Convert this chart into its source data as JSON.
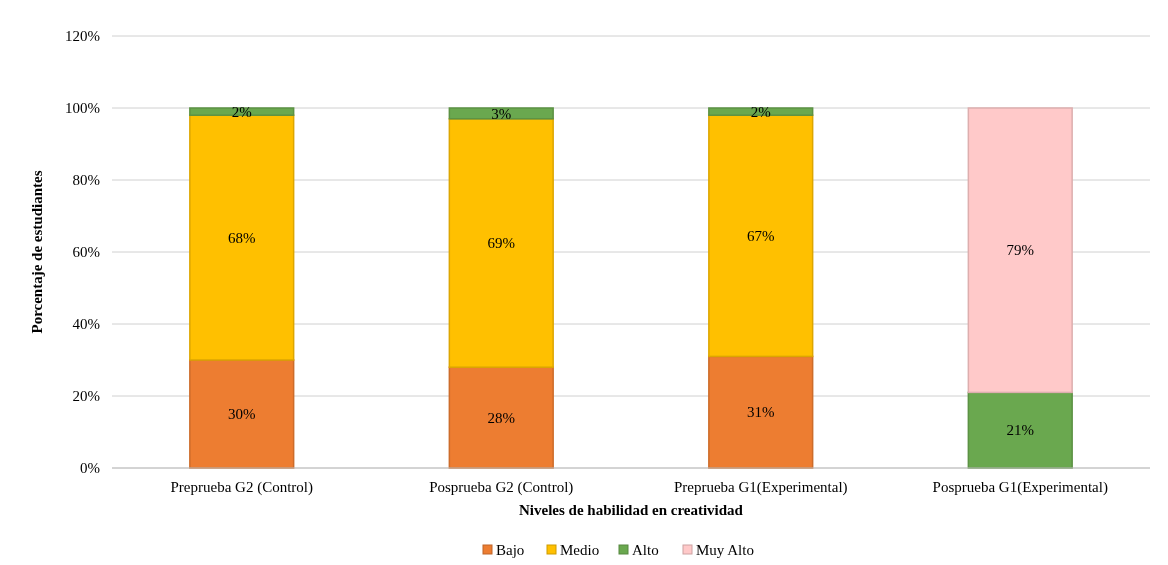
{
  "chart_data": {
    "type": "bar",
    "stacked": true,
    "xlabel": "Niveles de habilidad en creatividad",
    "ylabel": "Porcentaje de estudiantes",
    "categories": [
      "Preprueba G2 (Control)",
      "Posprueba G2 (Control)",
      "Preprueba G1(Experimental)",
      "Posprueba G1(Experimental)"
    ],
    "series": [
      {
        "name": "Bajo",
        "color": "#ed7d31",
        "values": [
          30,
          28,
          31,
          null
        ],
        "value_labels": [
          "30%",
          "28%",
          "31%",
          null
        ]
      },
      {
        "name": "Medio",
        "color": "#ffc000",
        "values": [
          68,
          69,
          67,
          null
        ],
        "value_labels": [
          "68%",
          "69%",
          "67%",
          null
        ]
      },
      {
        "name": "Alto",
        "color": "#6aa84f",
        "values": [
          2,
          3,
          2,
          21
        ],
        "value_labels": [
          "2%",
          "3%",
          "2%",
          "21%"
        ]
      },
      {
        "name": "Muy Alto",
        "color": "#ffc9c9",
        "values": [
          null,
          null,
          null,
          79
        ],
        "value_labels": [
          null,
          null,
          null,
          "79%"
        ]
      }
    ],
    "ylim": [
      0,
      120
    ],
    "yticks": [
      {
        "value": 0,
        "label": "0%"
      },
      {
        "value": 20,
        "label": "20%"
      },
      {
        "value": 40,
        "label": "40%"
      },
      {
        "value": 60,
        "label": "60%"
      },
      {
        "value": 80,
        "label": "80%"
      },
      {
        "value": 100,
        "label": "100%"
      },
      {
        "value": 120,
        "label": "120%"
      }
    ],
    "grid": "y",
    "legend": "bottom"
  }
}
